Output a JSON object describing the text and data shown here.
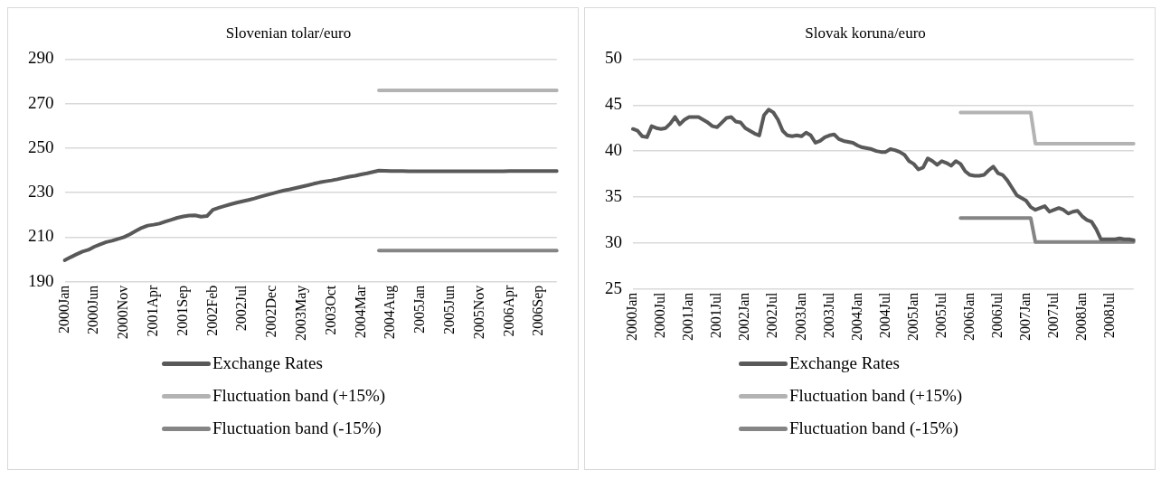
{
  "chart_data": [
    {
      "type": "line",
      "title": "Slovenian tolar/euro",
      "categories": [
        "2000Jan",
        null,
        null,
        null,
        null,
        "2000Jun",
        null,
        null,
        null,
        null,
        "2000Nov",
        null,
        null,
        null,
        null,
        "2001Apr",
        null,
        null,
        null,
        null,
        "2001Sep",
        null,
        null,
        null,
        null,
        "2002Feb",
        null,
        null,
        null,
        null,
        "2002Jul",
        null,
        null,
        null,
        null,
        "2002Dec",
        null,
        null,
        null,
        null,
        "2003May",
        null,
        null,
        null,
        null,
        "2003Oct",
        null,
        null,
        null,
        null,
        "2004Mar",
        null,
        null,
        null,
        null,
        "2004Aug",
        null,
        null,
        null,
        null,
        "2005Jan",
        null,
        null,
        null,
        null,
        "2005Jun",
        null,
        null,
        null,
        null,
        "2005Nov",
        null,
        null,
        null,
        null,
        "2006Apr",
        null,
        null,
        null,
        null,
        "2006Sep",
        null,
        null,
        null
      ],
      "series": [
        {
          "name": "Exchange Rates",
          "color": "#595959",
          "values": [
            199.6,
            201,
            202.3,
            203.5,
            204.3,
            205.7,
            206.8,
            207.8,
            208.4,
            209.2,
            210,
            211.3,
            212.8,
            214.2,
            215.2,
            215.6,
            216.1,
            217,
            217.8,
            218.7,
            219.3,
            219.7,
            219.8,
            219.2,
            219.5,
            222.3,
            223.2,
            224,
            224.8,
            225.5,
            226.1,
            226.7,
            227.4,
            228.2,
            228.9,
            229.6,
            230.3,
            231,
            231.5,
            232.1,
            232.7,
            233.3,
            234,
            234.6,
            235.1,
            235.5,
            236,
            236.6,
            237.2,
            237.6,
            238.2,
            238.7,
            239.3,
            239.9,
            239.8,
            239.7,
            239.7,
            239.7,
            239.6,
            239.6,
            239.6,
            239.6,
            239.6,
            239.6,
            239.6,
            239.6,
            239.6,
            239.6,
            239.6,
            239.6,
            239.6,
            239.6,
            239.6,
            239.6,
            239.6,
            239.7,
            239.7,
            239.7,
            239.7,
            239.7,
            239.7,
            239.7,
            239.7,
            239.7
          ]
        },
        {
          "name": "Fluctuation band (+15%)",
          "color": "#b3b3b3",
          "values": [
            null,
            null,
            null,
            null,
            null,
            null,
            null,
            null,
            null,
            null,
            null,
            null,
            null,
            null,
            null,
            null,
            null,
            null,
            null,
            null,
            null,
            null,
            null,
            null,
            null,
            null,
            null,
            null,
            null,
            null,
            null,
            null,
            null,
            null,
            null,
            null,
            null,
            null,
            null,
            null,
            null,
            null,
            null,
            null,
            null,
            null,
            null,
            null,
            null,
            null,
            null,
            null,
            null,
            276,
            276,
            276,
            276,
            276,
            276,
            276,
            276,
            276,
            276,
            276,
            276,
            276,
            276,
            276,
            276,
            276,
            276,
            276,
            276,
            276,
            276,
            276,
            276,
            276,
            276,
            276,
            276,
            276,
            276,
            276
          ]
        },
        {
          "name": "Fluctuation band (-15%)",
          "color": "#858585",
          "values": [
            null,
            null,
            null,
            null,
            null,
            null,
            null,
            null,
            null,
            null,
            null,
            null,
            null,
            null,
            null,
            null,
            null,
            null,
            null,
            null,
            null,
            null,
            null,
            null,
            null,
            null,
            null,
            null,
            null,
            null,
            null,
            null,
            null,
            null,
            null,
            null,
            null,
            null,
            null,
            null,
            null,
            null,
            null,
            null,
            null,
            null,
            null,
            null,
            null,
            null,
            null,
            null,
            null,
            204,
            204,
            204,
            204,
            204,
            204,
            204,
            204,
            204,
            204,
            204,
            204,
            204,
            204,
            204,
            204,
            204,
            204,
            204,
            204,
            204,
            204,
            204,
            204,
            204,
            204,
            204,
            204,
            204,
            204,
            204
          ]
        }
      ],
      "ylim": [
        190,
        290
      ],
      "yticks": [
        190,
        210,
        230,
        250,
        270,
        290
      ],
      "grid": "y",
      "legend": "bottom",
      "marker": "none",
      "line_style": "solid"
    },
    {
      "type": "line",
      "title": "Slovak koruna/euro",
      "categories": [
        "2000Jan",
        null,
        null,
        null,
        null,
        null,
        "2000Jul",
        null,
        null,
        null,
        null,
        null,
        "2001Jan",
        null,
        null,
        null,
        null,
        null,
        "2001Jul",
        null,
        null,
        null,
        null,
        null,
        "2002Jan",
        null,
        null,
        null,
        null,
        null,
        "2002Jul",
        null,
        null,
        null,
        null,
        null,
        "2003Jan",
        null,
        null,
        null,
        null,
        null,
        "2003Jul",
        null,
        null,
        null,
        null,
        null,
        "2004Jan",
        null,
        null,
        null,
        null,
        null,
        "2004Jul",
        null,
        null,
        null,
        null,
        null,
        "2005Jan",
        null,
        null,
        null,
        null,
        null,
        "2005Jul",
        null,
        null,
        null,
        null,
        null,
        "2006Jan",
        null,
        null,
        null,
        null,
        null,
        "2006Jul",
        null,
        null,
        null,
        null,
        null,
        "2007Jan",
        null,
        null,
        null,
        null,
        null,
        "2007Jul",
        null,
        null,
        null,
        null,
        null,
        "2008Jan",
        null,
        null,
        null,
        null,
        null,
        "2008Jul",
        null,
        null,
        null,
        null,
        null
      ],
      "series": [
        {
          "name": "Exchange Rates",
          "color": "#595959",
          "values": [
            42.4,
            42.2,
            41.6,
            41.5,
            42.7,
            42.5,
            42.4,
            42.5,
            43,
            43.7,
            42.9,
            43.4,
            43.7,
            43.7,
            43.7,
            43.4,
            43.1,
            42.7,
            42.6,
            43.1,
            43.6,
            43.7,
            43.2,
            43.1,
            42.5,
            42.2,
            41.9,
            41.7,
            43.9,
            44.5,
            44.2,
            43.4,
            42.2,
            41.7,
            41.6,
            41.7,
            41.6,
            42,
            41.7,
            40.9,
            41.1,
            41.5,
            41.7,
            41.8,
            41.3,
            41.1,
            41,
            40.9,
            40.6,
            40.4,
            40.3,
            40.2,
            40,
            39.9,
            39.9,
            40.2,
            40.1,
            39.9,
            39.6,
            38.9,
            38.6,
            38,
            38.2,
            39.2,
            38.9,
            38.5,
            38.9,
            38.7,
            38.4,
            38.9,
            38.6,
            37.8,
            37.4,
            37.3,
            37.3,
            37.4,
            37.9,
            38.3,
            37.6,
            37.4,
            36.8,
            36,
            35.2,
            34.9,
            34.6,
            33.9,
            33.6,
            33.8,
            34,
            33.4,
            33.6,
            33.8,
            33.6,
            33.2,
            33.4,
            33.5,
            32.9,
            32.5,
            32.3,
            31.5,
            30.4,
            30.4,
            30.4,
            30.4,
            30.5,
            30.4,
            30.4,
            30.3
          ]
        },
        {
          "name": "Fluctuation band (+15%)",
          "color": "#b3b3b3",
          "values": [
            null,
            null,
            null,
            null,
            null,
            null,
            null,
            null,
            null,
            null,
            null,
            null,
            null,
            null,
            null,
            null,
            null,
            null,
            null,
            null,
            null,
            null,
            null,
            null,
            null,
            null,
            null,
            null,
            null,
            null,
            null,
            null,
            null,
            null,
            null,
            null,
            null,
            null,
            null,
            null,
            null,
            null,
            null,
            null,
            null,
            null,
            null,
            null,
            null,
            null,
            null,
            null,
            null,
            null,
            null,
            null,
            null,
            null,
            null,
            null,
            null,
            null,
            null,
            null,
            null,
            null,
            null,
            null,
            null,
            null,
            44.2,
            44.2,
            44.2,
            44.2,
            44.2,
            44.2,
            44.2,
            44.2,
            44.2,
            44.2,
            44.2,
            44.2,
            44.2,
            44.2,
            44.2,
            44.2,
            40.8,
            40.8,
            40.8,
            40.8,
            40.8,
            40.8,
            40.8,
            40.8,
            40.8,
            40.8,
            40.8,
            40.8,
            40.8,
            40.8,
            40.8,
            40.8,
            40.8,
            40.8,
            40.8,
            40.8,
            40.8,
            40.8
          ]
        },
        {
          "name": "Fluctuation band (-15%)",
          "color": "#858585",
          "values": [
            null,
            null,
            null,
            null,
            null,
            null,
            null,
            null,
            null,
            null,
            null,
            null,
            null,
            null,
            null,
            null,
            null,
            null,
            null,
            null,
            null,
            null,
            null,
            null,
            null,
            null,
            null,
            null,
            null,
            null,
            null,
            null,
            null,
            null,
            null,
            null,
            null,
            null,
            null,
            null,
            null,
            null,
            null,
            null,
            null,
            null,
            null,
            null,
            null,
            null,
            null,
            null,
            null,
            null,
            null,
            null,
            null,
            null,
            null,
            null,
            null,
            null,
            null,
            null,
            null,
            null,
            null,
            null,
            null,
            null,
            32.7,
            32.7,
            32.7,
            32.7,
            32.7,
            32.7,
            32.7,
            32.7,
            32.7,
            32.7,
            32.7,
            32.7,
            32.7,
            32.7,
            32.7,
            32.7,
            30.1,
            30.1,
            30.1,
            30.1,
            30.1,
            30.1,
            30.1,
            30.1,
            30.1,
            30.1,
            30.1,
            30.1,
            30.1,
            30.1,
            30.1,
            30.1,
            30.1,
            30.1,
            30.1,
            30.1,
            30.1,
            30.1
          ]
        }
      ],
      "ylim": [
        25,
        50
      ],
      "yticks": [
        25,
        30,
        35,
        40,
        45,
        50
      ],
      "grid": "y",
      "legend": "bottom",
      "marker": "none",
      "line_style": "solid"
    }
  ]
}
